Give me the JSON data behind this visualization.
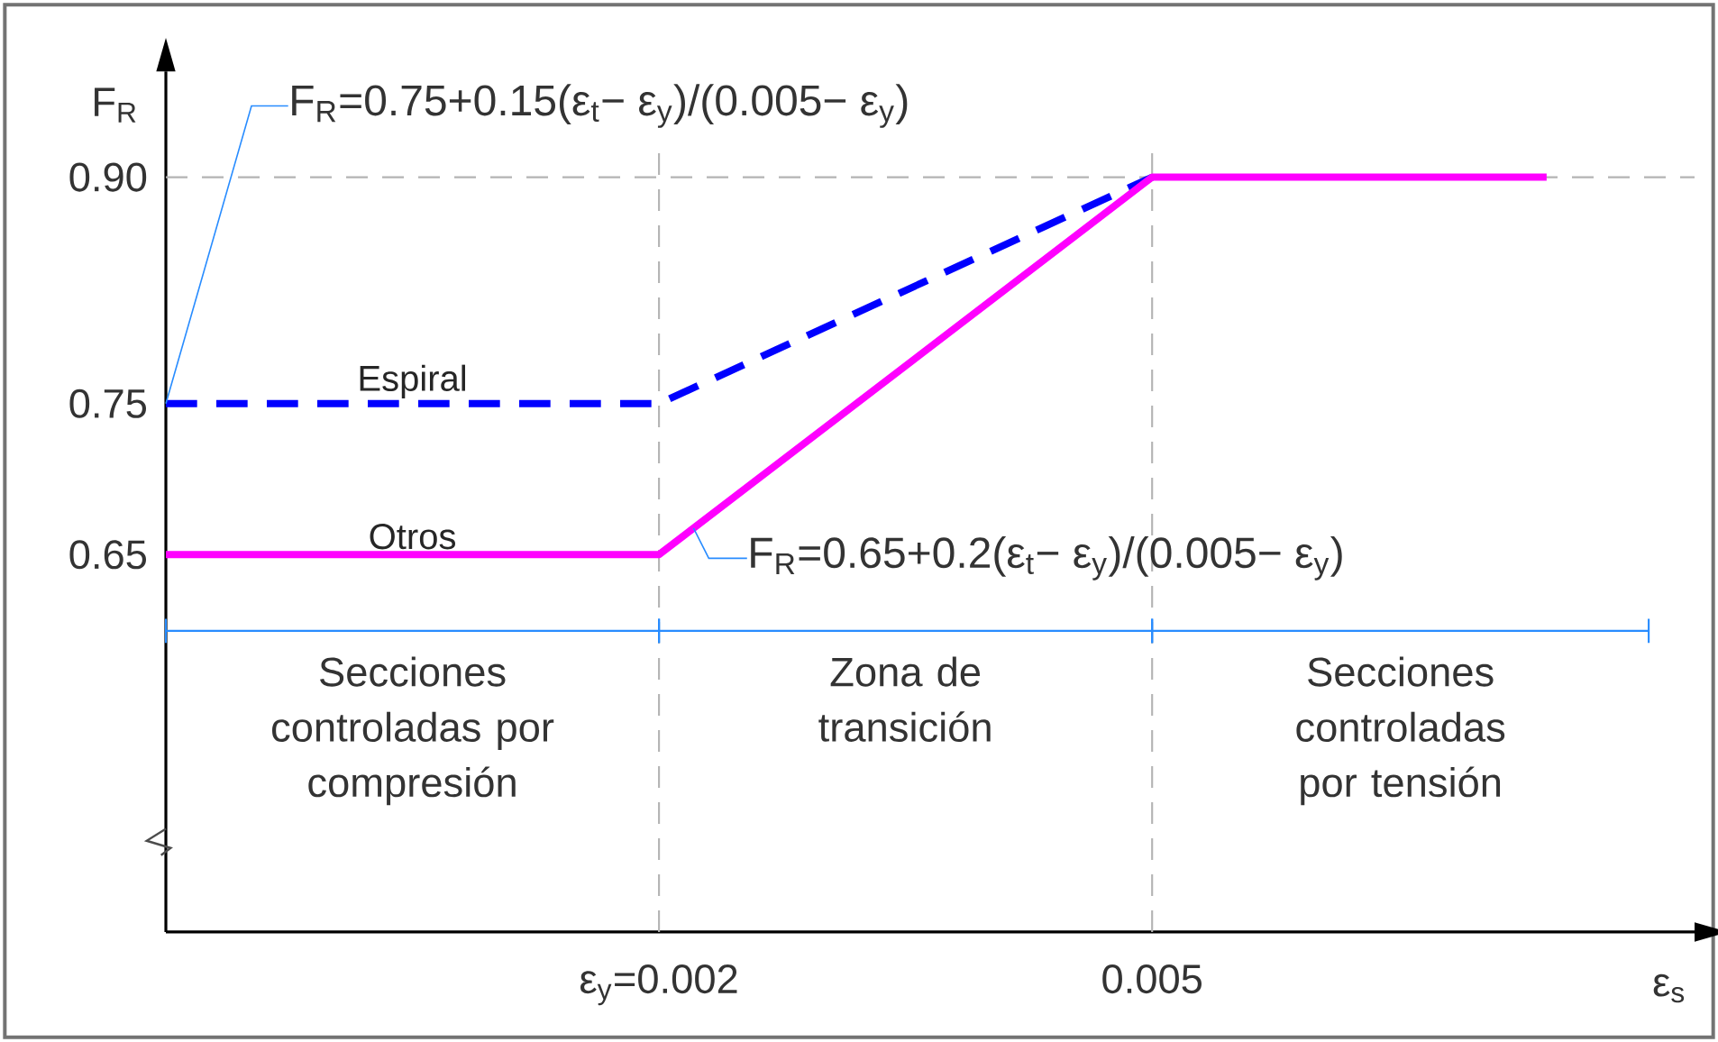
{
  "chart_data": {
    "type": "line",
    "xlabel": "ε$_{s}$",
    "ylabel": "F$_{R}$",
    "xlim": [
      -0.001,
      0.0083
    ],
    "ylim": [
      0.4,
      0.97
    ],
    "xticks": [
      {
        "value": 0.002,
        "label": "ε$_{y}$=0.002"
      },
      {
        "value": 0.005,
        "label": "0.005"
      }
    ],
    "yticks": [
      0.65,
      0.75,
      {
        "value": 0.9,
        "label": "0.90"
      }
    ],
    "series": [
      {
        "name": "Espiral",
        "color": "#0000ff",
        "line_style": "dashed",
        "x": [
          -0.001,
          0.002,
          0.005
        ],
        "values": [
          0.75,
          0.75,
          0.9
        ]
      },
      {
        "name": "Otros",
        "color": "#ff00ff",
        "line_style": "solid",
        "x": [
          -0.001,
          0.002,
          0.005,
          0.0074
        ],
        "values": [
          0.65,
          0.65,
          0.9,
          0.9
        ]
      }
    ],
    "ref_lines": [
      {
        "axis": "x",
        "value": 0.002,
        "color": "#b4b4b4",
        "line_style": "dashed"
      },
      {
        "axis": "x",
        "value": 0.005,
        "color": "#b4b4b4",
        "line_style": "dashed"
      },
      {
        "axis": "y",
        "value": 0.9,
        "color": "#b4b4b4",
        "line_style": "dashed"
      }
    ],
    "annotations": [
      "F$_{R}$=0.75+0.15(ε$_{t}$− ε$_{y}$)/(0.005− ε$_{y}$)",
      "F$_{R}$=0.65+0.2(ε$_{t}$− ε$_{y}$)/(0.005− ε$_{y}$)",
      "Secciones controladas por compresión",
      "Zona de transición",
      "Secciones controladas por tensión"
    ],
    "legend": false
  }
}
